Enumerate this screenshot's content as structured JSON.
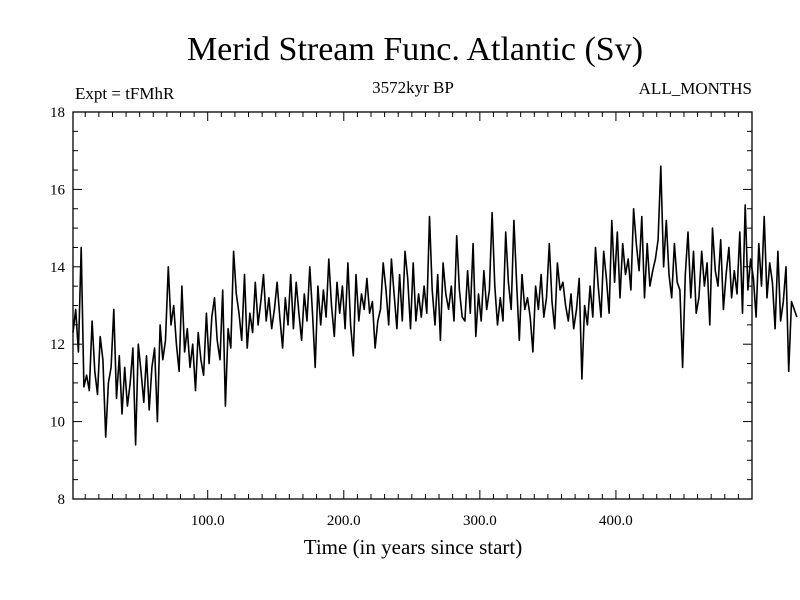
{
  "chart_data": {
    "type": "line",
    "title": "Merid Stream Func. Atlantic (Sv)",
    "subtitle_left": "Expt = tFMhR",
    "subtitle_center": "3572kyr BP",
    "subtitle_right": "ALL_MONTHS",
    "xlabel": "Time (in years since start)",
    "ylabel": "",
    "xlim": [
      1,
      500
    ],
    "ylim": [
      8,
      18
    ],
    "x_ticks": [
      100,
      200,
      300,
      400
    ],
    "x_tick_labels": [
      "100.0",
      "200.0",
      "300.0",
      "400.0"
    ],
    "y_ticks": [
      8,
      10,
      12,
      14,
      16,
      18
    ],
    "y_tick_labels": [
      "8",
      "10",
      "12",
      "14",
      "16",
      "18"
    ],
    "grid": false,
    "series": [
      {
        "name": "Merid Stream Func. Atlantic",
        "x_start": 1,
        "x_step": 2,
        "values": [
          12.3,
          12.9,
          11.8,
          14.5,
          10.9,
          11.2,
          10.8,
          12.6,
          11.3,
          10.7,
          12.2,
          11.6,
          9.6,
          11.0,
          11.4,
          12.9,
          10.6,
          11.7,
          10.2,
          11.4,
          10.4,
          11.0,
          11.9,
          9.4,
          12.0,
          11.3,
          10.5,
          11.7,
          10.3,
          11.4,
          11.9,
          10.0,
          12.5,
          11.6,
          12.1,
          14.0,
          12.5,
          13.0,
          12.0,
          11.3,
          13.5,
          11.8,
          12.4,
          11.4,
          12.0,
          10.8,
          12.3,
          11.6,
          11.2,
          12.8,
          11.5,
          12.7,
          13.2,
          12.1,
          11.6,
          13.4,
          10.4,
          12.4,
          11.9,
          14.4,
          13.3,
          12.8,
          12.1,
          13.8,
          11.9,
          12.8,
          12.3,
          13.6,
          12.5,
          13.1,
          13.8,
          12.6,
          13.2,
          12.4,
          12.9,
          13.6,
          12.7,
          11.9,
          13.2,
          12.5,
          13.8,
          12.4,
          13.6,
          12.8,
          12.1,
          13.3,
          12.6,
          14.0,
          12.8,
          11.4,
          13.5,
          12.5,
          13.4,
          12.7,
          14.2,
          13.0,
          12.2,
          13.6,
          12.8,
          13.5,
          12.4,
          14.1,
          12.5,
          11.7,
          13.8,
          12.6,
          13.3,
          12.9,
          13.7,
          12.8,
          13.1,
          11.9,
          12.6,
          12.9,
          14.1,
          13.4,
          12.5,
          14.2,
          13.3,
          12.4,
          13.8,
          12.6,
          14.4,
          13.7,
          12.4,
          14.1,
          12.6,
          13.3,
          12.7,
          13.5,
          12.8,
          15.3,
          13.4,
          12.5,
          13.8,
          12.1,
          14.1,
          13.3,
          12.9,
          13.5,
          12.6,
          14.8,
          13.4,
          12.7,
          12.6,
          13.9,
          12.8,
          14.6,
          12.2,
          13.3,
          12.6,
          13.9,
          12.9,
          13.4,
          15.4,
          13.5,
          12.5,
          13.2,
          12.6,
          14.9,
          13.6,
          12.9,
          15.2,
          13.6,
          12.1,
          13.8,
          12.9,
          13.2,
          12.7,
          11.8,
          13.5,
          12.9,
          13.8,
          12.7,
          13.2,
          14.6,
          13.1,
          12.4,
          14.1,
          13.4,
          13.6,
          13.0,
          12.6,
          13.3,
          12.4,
          12.9,
          13.7,
          11.1,
          13.0,
          12.5,
          13.5,
          12.7,
          14.5,
          13.5,
          12.7,
          14.4,
          13.7,
          12.8,
          15.2,
          13.6,
          14.9,
          13.2,
          14.6,
          13.8,
          14.2,
          13.4,
          15.5,
          14.6,
          13.9,
          15.3,
          13.2,
          14.6,
          13.5,
          13.9,
          14.2,
          14.7,
          16.6,
          14.0,
          15.2,
          13.8,
          13.2,
          14.6,
          13.6,
          13.4,
          11.4,
          13.8,
          14.9,
          13.2,
          14.4,
          12.8,
          13.2,
          14.4,
          13.5,
          14.1,
          12.5,
          15.0,
          13.9,
          13.5,
          14.7,
          12.9,
          13.8,
          14.5,
          13.2,
          13.9,
          13.3,
          14.9,
          12.8,
          15.6,
          13.4,
          14.2,
          13.7,
          12.7,
          14.6,
          13.5,
          15.3,
          13.2,
          14.1,
          13.6,
          12.4,
          14.4,
          12.6,
          13.1,
          14.0,
          11.3,
          13.1,
          12.9,
          12.7
        ]
      }
    ]
  }
}
